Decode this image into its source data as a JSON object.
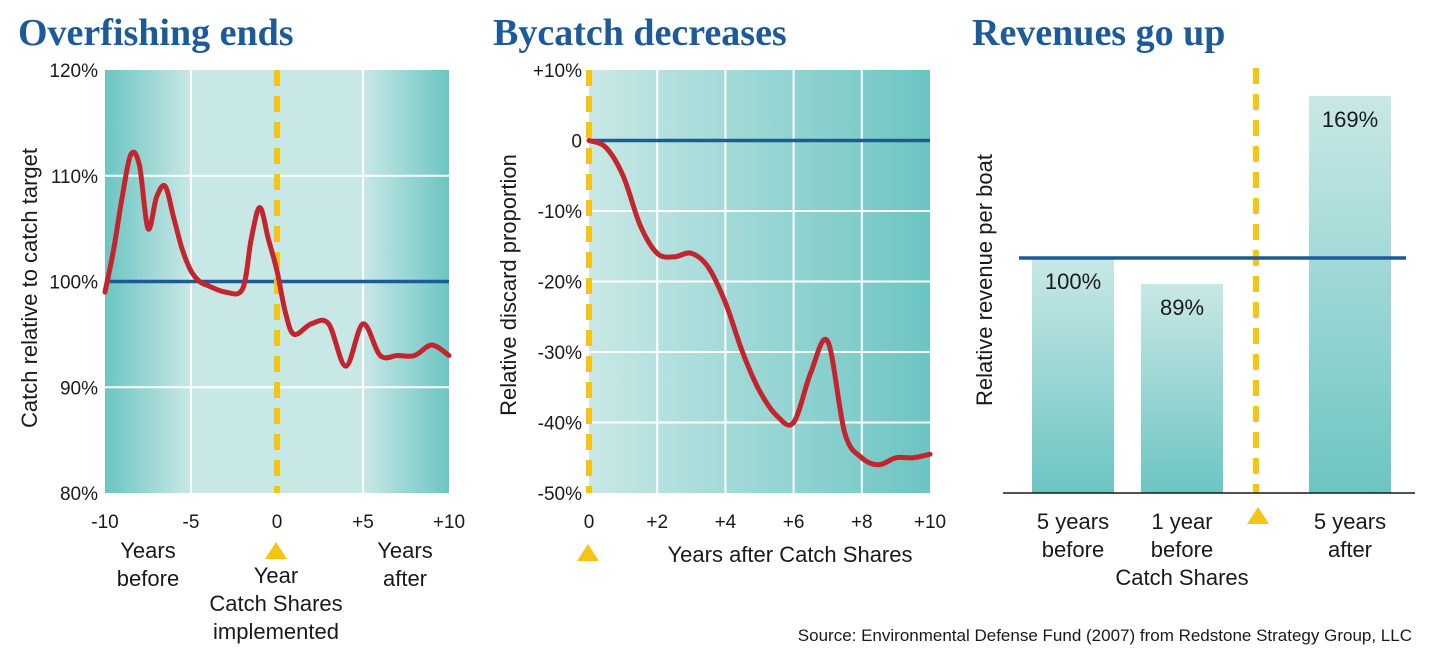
{
  "colors": {
    "teal_dark": "#6cc5c2",
    "teal_light": "#c8e8e6",
    "gridline": "#ffffff",
    "line_red": "#c4242e",
    "baseline_blue": "#1d5a99",
    "marker_yellow": "#f6c415",
    "title_blue": "#1d5a99"
  },
  "source": "Source: Environmental Defense Fund (2007) from Redstone Strategy Group, LLC",
  "chart_data": [
    {
      "type": "line",
      "title": "Overfishing ends",
      "ylabel": "Catch relative to catch target",
      "xlim": [
        -10,
        10
      ],
      "ylim": [
        80,
        120
      ],
      "x_ticks": [
        -10,
        -5,
        0,
        5,
        10
      ],
      "x_tick_labels": [
        "-10",
        "-5",
        "0",
        "+5",
        "+10"
      ],
      "y_ticks": [
        80,
        90,
        100,
        110,
        120
      ],
      "y_tick_labels": [
        "80%",
        "90%",
        "100%",
        "110%",
        "120%"
      ],
      "grid": true,
      "reference_line": 100,
      "marker_x": 0,
      "captions": {
        "before": [
          "Years",
          "before"
        ],
        "center": [
          "Year",
          "Catch Shares",
          "implemented"
        ],
        "after": [
          "Years",
          "after"
        ]
      },
      "x": [
        -10,
        -9.5,
        -9,
        -8.5,
        -8,
        -7.5,
        -7,
        -6.5,
        -6,
        -5.5,
        -5,
        -4.5,
        -4,
        -3,
        -2,
        -1.5,
        -1,
        -0.5,
        0,
        0.5,
        1,
        2,
        3,
        4,
        5,
        6,
        7,
        8,
        9,
        10
      ],
      "y": [
        99,
        103,
        108,
        112,
        111,
        105,
        108,
        109,
        106,
        103,
        101,
        100,
        99.6,
        99,
        99.3,
        104,
        107,
        104,
        101,
        97,
        95,
        96,
        96,
        92,
        96,
        93,
        93,
        93,
        94,
        93
      ]
    },
    {
      "type": "line",
      "title": "Bycatch decreases",
      "xlabel": "Years after Catch Shares",
      "ylabel": "Relative discard proportion",
      "xlim": [
        0,
        10
      ],
      "ylim": [
        -50,
        10
      ],
      "x_ticks": [
        0,
        2,
        4,
        6,
        8,
        10
      ],
      "x_tick_labels": [
        "0",
        "+2",
        "+4",
        "+6",
        "+8",
        "+10"
      ],
      "y_ticks": [
        -50,
        -40,
        -30,
        -20,
        -10,
        0,
        10
      ],
      "y_tick_labels": [
        "-50%",
        "-40%",
        "-30%",
        "-20%",
        "-10%",
        "0",
        "+10%"
      ],
      "grid": true,
      "reference_line": 0,
      "marker_x": 0,
      "x": [
        0,
        0.5,
        1,
        1.5,
        2,
        2.5,
        3,
        3.5,
        4,
        4.5,
        5,
        5.5,
        6,
        6.5,
        7,
        7.5,
        8,
        8.5,
        9,
        9.5,
        10
      ],
      "y": [
        0,
        -1,
        -5,
        -12,
        -16,
        -16.5,
        -16,
        -18,
        -23,
        -30,
        -35.5,
        -39,
        -40,
        -33,
        -28.5,
        -41.5,
        -45,
        -46,
        -45,
        -45,
        -44.5
      ]
    },
    {
      "type": "bar",
      "title": "Revenues go up",
      "ylabel": "Relative revenue per boat",
      "ylim": [
        0,
        180
      ],
      "reference_line": 100,
      "category_lines": [
        [
          "5 years",
          "before"
        ],
        [
          "1 year",
          "before"
        ],
        [
          "5 years",
          "after"
        ]
      ],
      "group_label": "Catch Shares",
      "values": [
        100,
        89,
        169
      ],
      "value_labels": [
        "100%",
        "89%",
        "169%"
      ]
    }
  ]
}
